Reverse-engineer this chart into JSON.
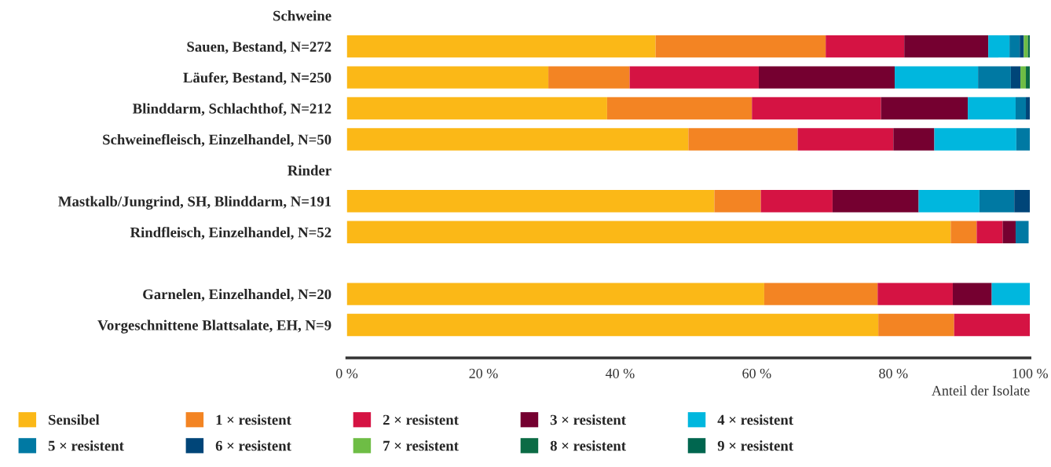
{
  "chart_data": {
    "type": "bar",
    "orientation": "horizontal",
    "stacked": true,
    "categories": [
      "Schweine",
      "Sauen, Bestand, N=272",
      "Läufer, Bestand, N=250",
      "Blinddarm, Schlachthof, N=212",
      "Schweinefleisch, Einzelhandel, N=50",
      "Rinder",
      "Mastkalb/Jungrind, SH, Blinddarm, N=191",
      "Rindfleisch, Einzelhandel, N=52",
      null,
      "Garnelen, Einzelhandel, N=20",
      "Vorgeschnittene Blattsalate, EH, N=9"
    ],
    "series": [
      {
        "name": "Sensibel",
        "color": "#fbb817",
        "values": [
          null,
          45.2,
          29.5,
          38.1,
          50,
          null,
          53.8,
          88.4,
          null,
          61.1,
          77.8
        ]
      },
      {
        "name": "1 × resistent",
        "color": "#f38423",
        "values": [
          null,
          24.9,
          11.9,
          21.2,
          16,
          null,
          6.8,
          3.8,
          null,
          16.6,
          11.1
        ]
      },
      {
        "name": "2 × resistent",
        "color": "#d51343",
        "values": [
          null,
          11.5,
          18.9,
          18.9,
          14,
          null,
          10.5,
          3.8,
          null,
          11.0,
          11.1
        ]
      },
      {
        "name": "3 × resistent",
        "color": "#750030",
        "values": [
          null,
          12.3,
          19.9,
          12.7,
          6,
          null,
          12.6,
          1.9,
          null,
          5.7,
          null
        ]
      },
      {
        "name": "4 × resistent",
        "color": "#00b7de",
        "values": [
          null,
          3.1,
          12.2,
          7.0,
          12,
          null,
          8.9,
          null,
          null,
          5.6,
          null
        ]
      },
      {
        "name": "5 × resistent",
        "color": "#0079a3",
        "values": [
          null,
          1.5,
          4.8,
          1.5,
          2,
          null,
          5.1,
          1.9,
          null,
          null,
          null
        ]
      },
      {
        "name": "6 × resistent",
        "color": "#004578",
        "values": [
          null,
          0.6,
          1.4,
          0.6,
          null,
          null,
          2.3,
          null,
          null,
          null,
          null
        ]
      },
      {
        "name": "7 × resistent",
        "color": "#6ebd45",
        "values": [
          null,
          0.6,
          0.8,
          null,
          null,
          null,
          null,
          null,
          null,
          null,
          null
        ]
      },
      {
        "name": "8 × resistent",
        "color": "#0b6b45",
        "values": [
          null,
          0.3,
          0.6,
          null,
          null,
          null,
          null,
          null,
          null,
          null,
          null
        ]
      },
      {
        "name": "9 × resistent",
        "color": "#00664f",
        "values": [
          null,
          null,
          null,
          null,
          null,
          null,
          null,
          null,
          null,
          null,
          null
        ]
      }
    ],
    "xlim": [
      0,
      100
    ],
    "xticks": [
      {
        "value": 0,
        "label": "0 %"
      },
      {
        "value": 20,
        "label": "20 %"
      },
      {
        "value": 40,
        "label": "40 %"
      },
      {
        "value": 60,
        "label": "60 %"
      },
      {
        "value": 80,
        "label": "80 %"
      },
      {
        "value": 100,
        "label": "100 %"
      }
    ],
    "xlabel": "Anteil der Isolate",
    "legend": "bottom left",
    "grid": false
  }
}
